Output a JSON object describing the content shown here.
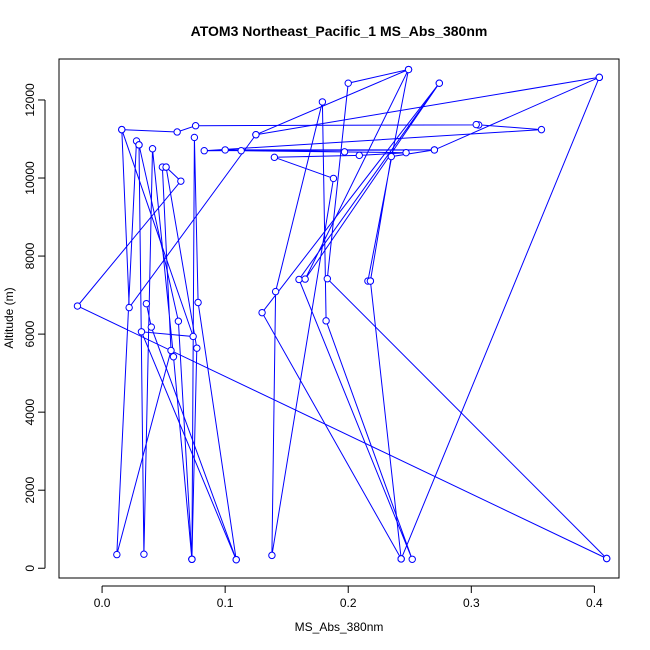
{
  "chart_data": {
    "type": "line",
    "title": "ATOM3 Northeast_Pacific_1 MS_Abs_380nm",
    "xlabel": "MS_Abs_380nm",
    "ylabel": "Altitude (m)",
    "xlim": [
      -0.035,
      0.42
    ],
    "ylim": [
      -250,
      13050
    ],
    "xticks": [
      0.0,
      0.1,
      0.2,
      0.3,
      0.4
    ],
    "xtick_labels": [
      "0.0",
      "0.1",
      "0.2",
      "0.3",
      "0.4"
    ],
    "yticks": [
      0,
      2000,
      4000,
      6000,
      8000,
      10000,
      12000
    ],
    "ytick_labels": [
      "0",
      "2000",
      "4000",
      "6000",
      "8000",
      "10000",
      "12000"
    ],
    "grid": false,
    "color": "#0000ff",
    "marker": "open-circle",
    "series": [
      {
        "points": [
          [
            0.41,
            250
          ],
          [
            -0.02,
            6720
          ],
          [
            0.064,
            9920
          ],
          [
            0.052,
            10280
          ],
          [
            0.049,
            10280
          ],
          [
            0.056,
            5580
          ],
          [
            0.012,
            350
          ],
          [
            0.028,
            10950
          ],
          [
            0.03,
            10850
          ],
          [
            0.034,
            360
          ],
          [
            0.041,
            10750
          ],
          [
            0.058,
            5420
          ],
          [
            0.073,
            230
          ],
          [
            0.075,
            11040
          ],
          [
            0.078,
            6810
          ],
          [
            0.109,
            220
          ],
          [
            0.032,
            6060
          ],
          [
            0.074,
            5940
          ],
          [
            0.016,
            11240
          ],
          [
            0.061,
            11180
          ],
          [
            0.076,
            11340
          ],
          [
            0.306,
            11360
          ],
          [
            0.304,
            11370
          ],
          [
            0.357,
            11240
          ],
          [
            0.083,
            10700
          ],
          [
            0.27,
            10720
          ],
          [
            0.1,
            10720
          ],
          [
            0.197,
            10670
          ],
          [
            0.113,
            10700
          ],
          [
            0.247,
            10650
          ],
          [
            0.209,
            10580
          ],
          [
            0.14,
            10530
          ],
          [
            0.188,
            9990
          ],
          [
            0.138,
            330
          ],
          [
            0.141,
            7090
          ],
          [
            0.179,
            11950
          ],
          [
            0.182,
            6340
          ],
          [
            0.252,
            230
          ],
          [
            0.16,
            7400
          ],
          [
            0.274,
            12430
          ],
          [
            0.165,
            7410
          ],
          [
            0.249,
            12780
          ],
          [
            0.2,
            12430
          ],
          [
            0.183,
            7420
          ],
          [
            0.41,
            250
          ]
        ]
      },
      {
        "points": [
          [
            0.036,
            6780
          ],
          [
            0.04,
            6180
          ],
          [
            0.109,
            220
          ]
        ]
      },
      {
        "points": [
          [
            0.052,
            10280
          ],
          [
            0.077,
            5640
          ],
          [
            0.073,
            230
          ]
        ]
      },
      {
        "points": [
          [
            0.03,
            10850
          ],
          [
            0.062,
            6330
          ],
          [
            0.073,
            230
          ]
        ]
      },
      {
        "points": [
          [
            0.125,
            11110
          ],
          [
            0.022,
            6680
          ],
          [
            0.016,
            11240
          ]
        ]
      },
      {
        "points": [
          [
            0.243,
            240
          ],
          [
            0.13,
            6550
          ],
          [
            0.274,
            12430
          ]
        ]
      },
      {
        "points": [
          [
            0.218,
            7360
          ],
          [
            0.216,
            7360
          ],
          [
            0.249,
            12780
          ],
          [
            0.125,
            11110
          ],
          [
            0.404,
            12580
          ],
          [
            0.243,
            240
          ],
          [
            0.218,
            7360
          ],
          [
            0.235,
            10550
          ],
          [
            0.27,
            10720
          ],
          [
            0.404,
            12580
          ]
        ]
      }
    ]
  }
}
